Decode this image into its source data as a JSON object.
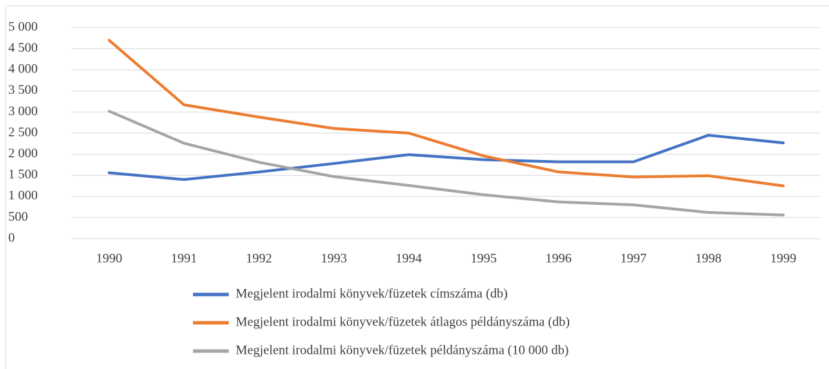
{
  "chart_data": {
    "type": "line",
    "categories": [
      "1990",
      "1991",
      "1992",
      "1993",
      "1994",
      "1995",
      "1996",
      "1997",
      "1998",
      "1999"
    ],
    "series": [
      {
        "name": "Megjelent irodalmi könyvek/füzetek címszáma (db)",
        "color": "#4472c4",
        "values": [
          1560,
          1400,
          1580,
          1780,
          1990,
          1870,
          1820,
          1820,
          2450,
          2270
        ]
      },
      {
        "name": "Megjelent irodalmi könyvek/füzetek átlagos példányszáma (db)",
        "color": "#ed7d31",
        "values": [
          4700,
          3170,
          2880,
          2610,
          2500,
          1960,
          1580,
          1460,
          1490,
          1250
        ]
      },
      {
        "name": "Megjelent irodalmi könyvek/füzetek példányszáma (10 000 db)",
        "color": "#a5a5a5",
        "values": [
          3020,
          2260,
          1810,
          1470,
          1260,
          1040,
          870,
          800,
          620,
          560
        ]
      }
    ],
    "ylim": [
      0,
      5000
    ],
    "yticks": [
      0,
      500,
      {
        "value": 1000,
        "label": "1 000"
      },
      {
        "value": 1500,
        "label": "1 500"
      },
      {
        "value": 2000,
        "label": "2 000"
      },
      {
        "value": 2500,
        "label": "2 500"
      },
      {
        "value": 3000,
        "label": "3 000"
      },
      {
        "value": 3500,
        "label": "3 500"
      },
      {
        "value": 4000,
        "label": "4 000"
      },
      {
        "value": 4500,
        "label": "4 500"
      },
      {
        "value": 5000,
        "label": "5 000"
      }
    ],
    "grid": true,
    "legend": "bottom"
  }
}
